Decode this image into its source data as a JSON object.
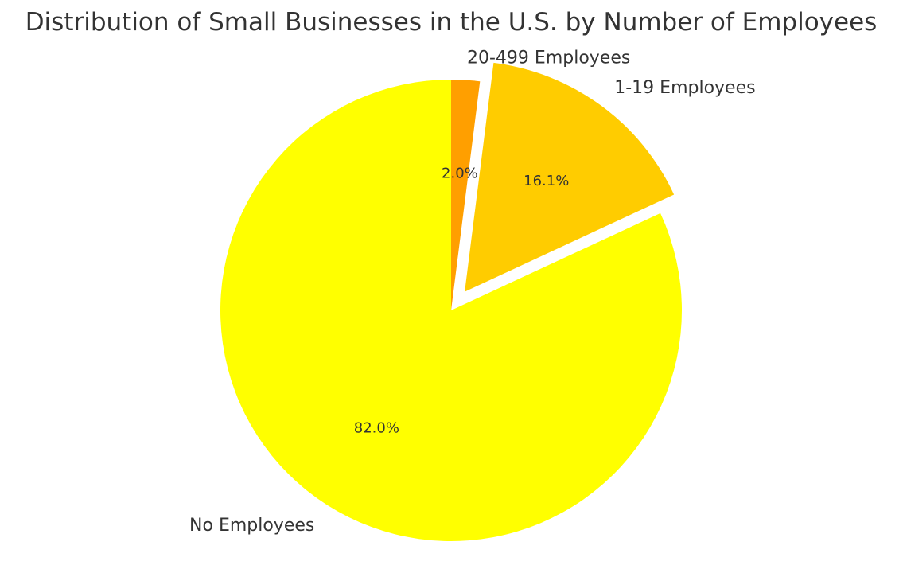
{
  "chart_data": {
    "type": "pie",
    "title": "Distribution of Small Businesses in the U.S. by Number of Employees",
    "slices": [
      {
        "label": "20-499 Employees",
        "value": 2.0,
        "pct_label": "2.0%",
        "color": "#ff9f00",
        "exploded": false
      },
      {
        "label": "1-19 Employees",
        "value": 16.1,
        "pct_label": "16.1%",
        "color": "#ffcc00",
        "exploded": true
      },
      {
        "label": "No Employees",
        "value": 82.0,
        "pct_label": "82.0%",
        "color": "#ffff00",
        "exploded": false
      }
    ],
    "start_angle_deg": 90,
    "direction": "clockwise",
    "legend": "none"
  }
}
